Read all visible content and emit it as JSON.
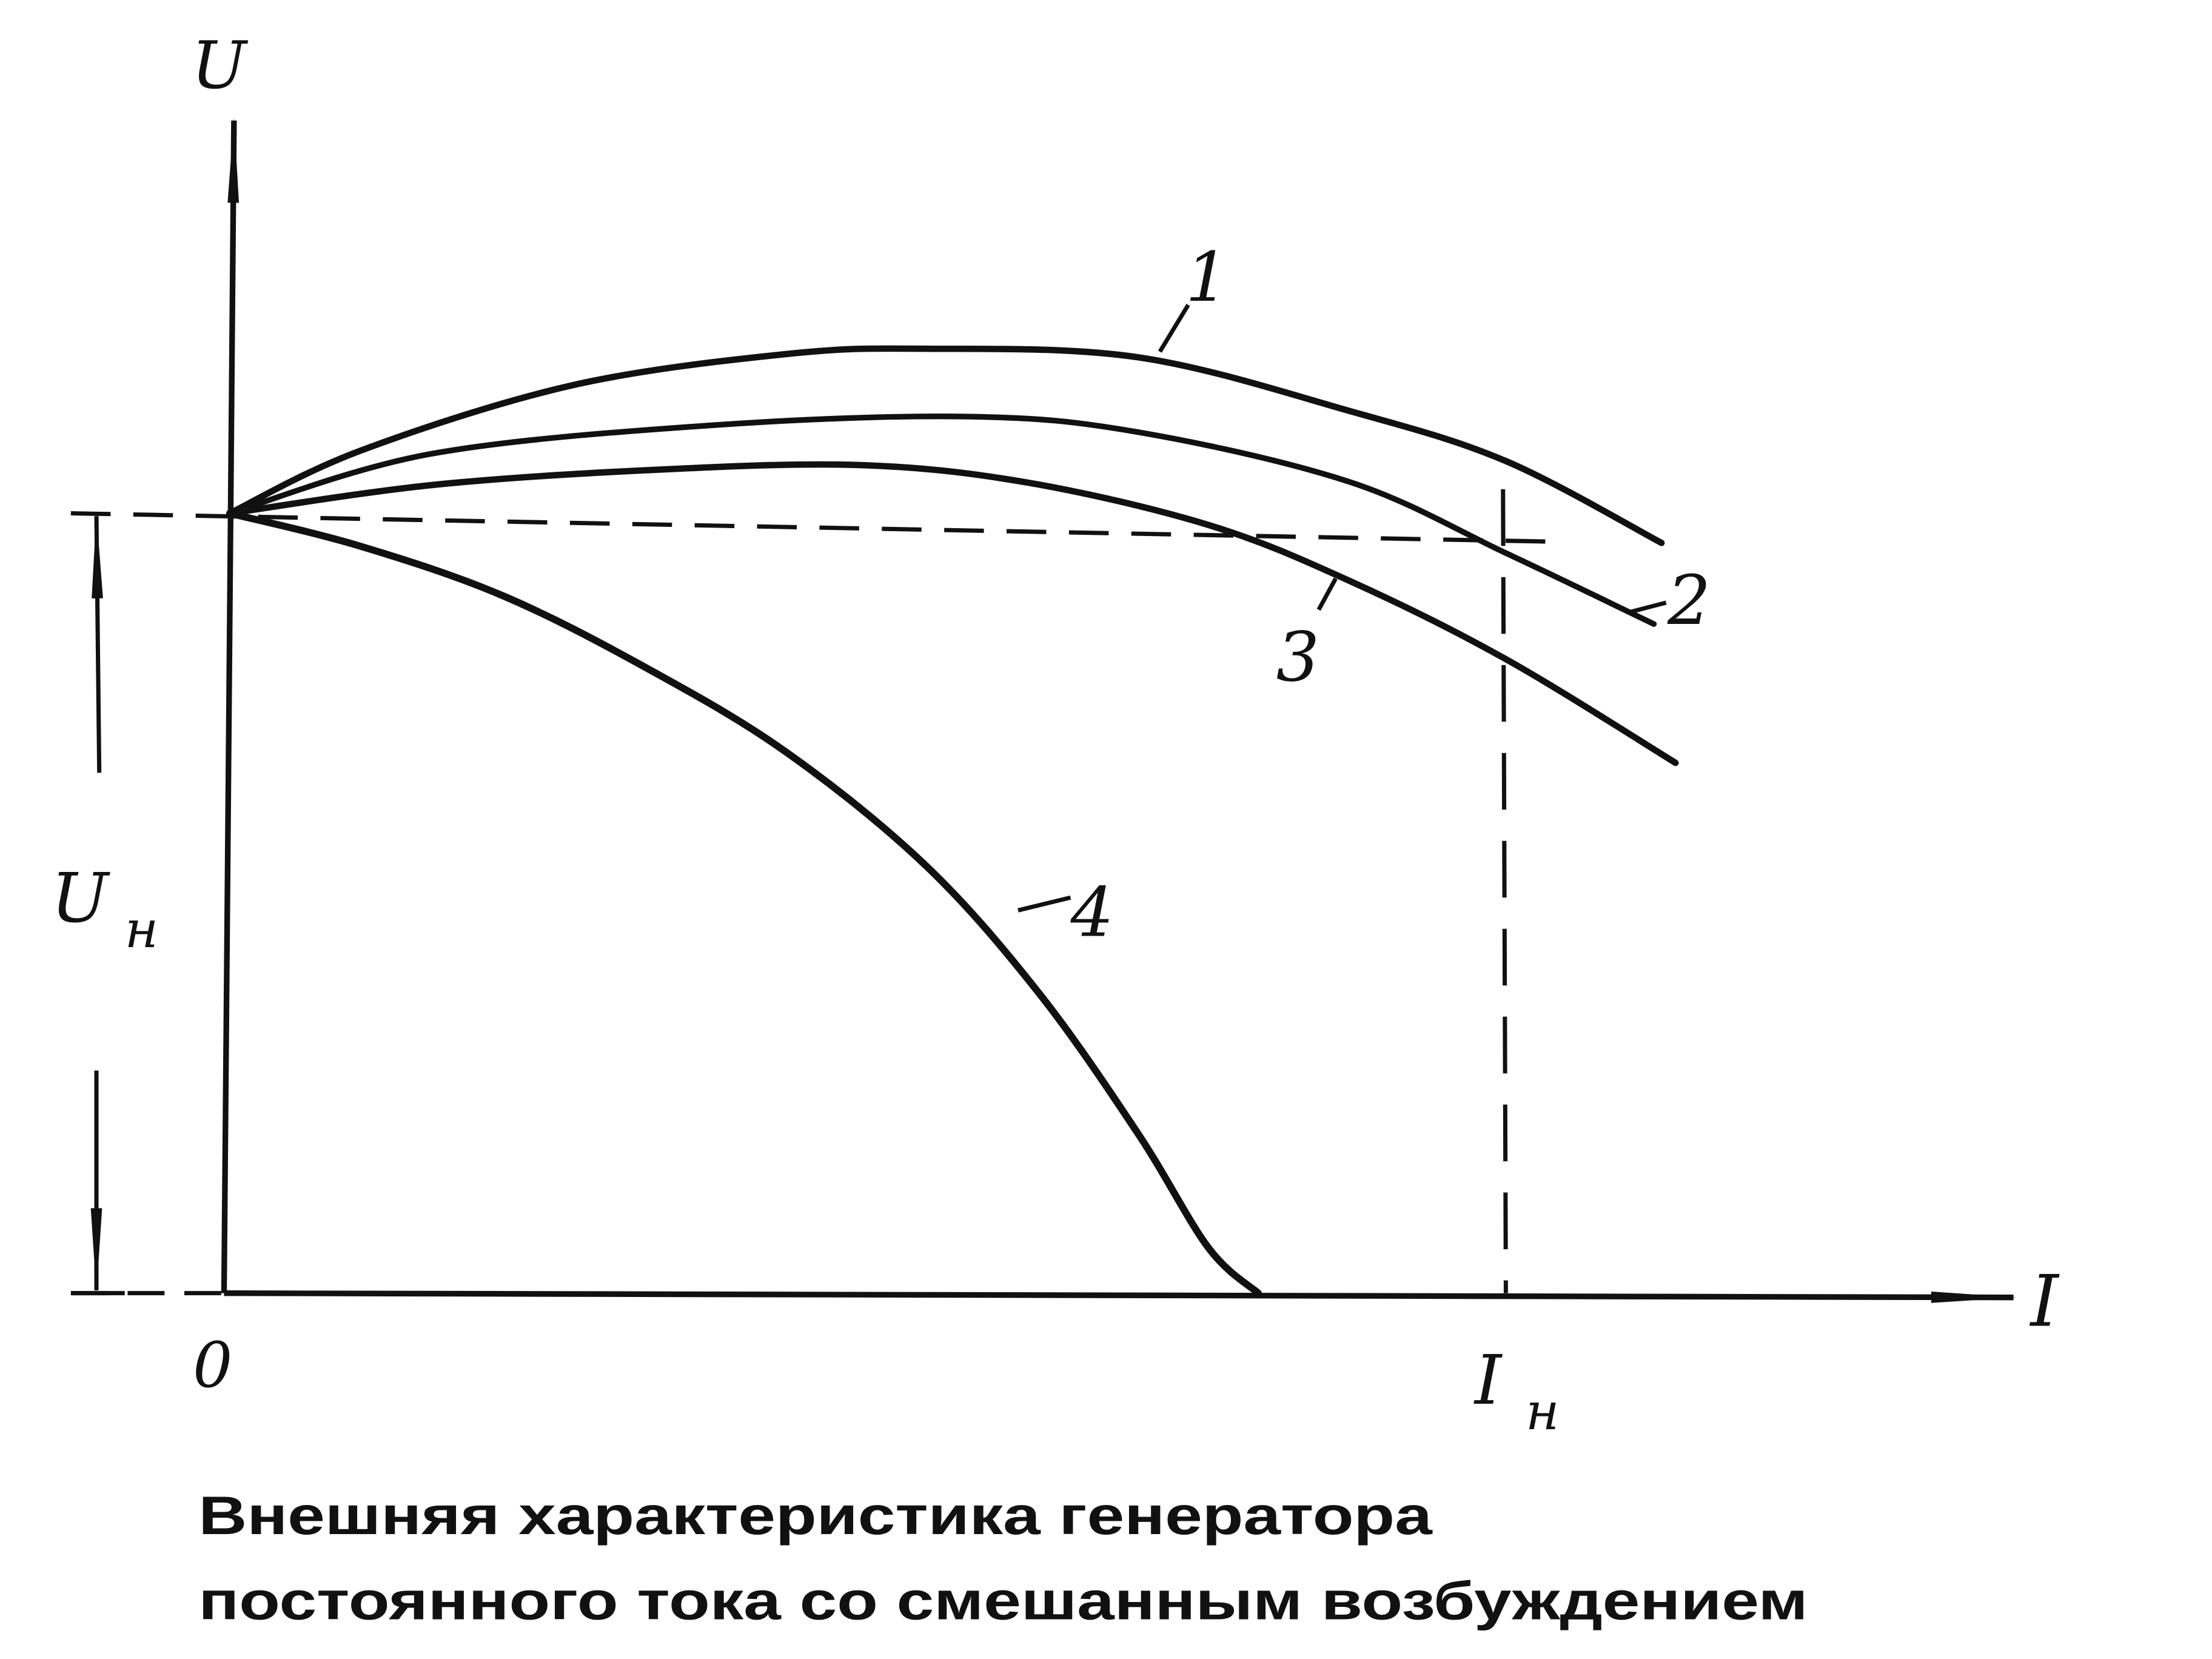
{
  "caption": {
    "line1": "Внешняя характеристика генератора",
    "line2": "постоянного тока со смешанным возбуждением"
  },
  "chart_data": {
    "type": "line",
    "xlabel": "I",
    "ylabel": "U",
    "origin_label": "0",
    "x_marker_label": "I",
    "x_marker_sub": "н",
    "y_marker_label": "U",
    "y_marker_sub": "н",
    "x_reference": 1,
    "y_reference": 1,
    "grid": false,
    "series": [
      {
        "label": "1",
        "x": [
          0,
          0.102,
          0.268,
          0.435,
          0.545,
          0.712,
          0.878,
          1.0,
          1.122
        ],
        "y": [
          1,
          1.08,
          1.164,
          1.204,
          1.211,
          1.2,
          1.131,
          1.067,
          0.962
        ]
      },
      {
        "label": "2",
        "x": [
          0,
          0.157,
          0.379,
          0.579,
          0.712,
          0.878,
          1.0,
          1.116
        ],
        "y": [
          1,
          1.076,
          1.113,
          1.124,
          1.104,
          1.04,
          0.949,
          0.858
        ]
      },
      {
        "label": "3",
        "x": [
          0,
          0.157,
          0.324,
          0.49,
          0.623,
          0.767,
          0.878,
          1.0,
          1.133
        ],
        "y": [
          1,
          1.036,
          1.055,
          1.062,
          1.04,
          0.985,
          0.913,
          0.813,
          0.68
        ]
      },
      {
        "label": "4",
        "x": [
          0,
          0.102,
          0.213,
          0.324,
          0.435,
          0.545,
          0.634,
          0.712,
          0.767,
          0.806
        ],
        "y": [
          1,
          0.958,
          0.895,
          0.804,
          0.695,
          0.549,
          0.385,
          0.204,
          0.058,
          0
        ]
      }
    ]
  }
}
